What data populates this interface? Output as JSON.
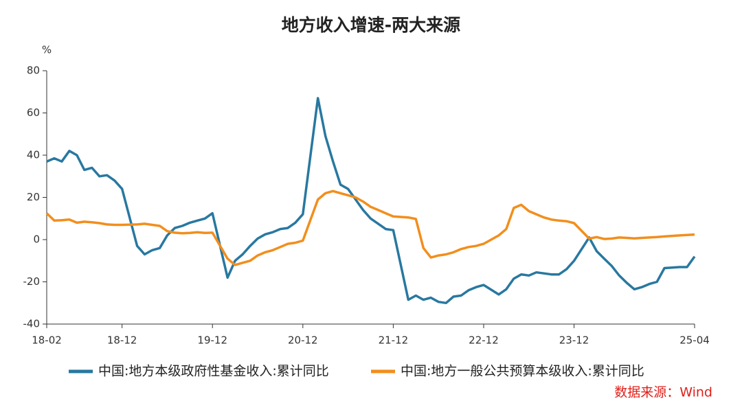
{
  "chart_data": {
    "type": "line",
    "title": "地方收入增速-两大来源",
    "y_unit": "%",
    "source": "数据来源：Wind",
    "x": [
      "18-02",
      "18-03",
      "18-04",
      "18-05",
      "18-06",
      "18-07",
      "18-08",
      "18-09",
      "18-10",
      "18-11",
      "18-12",
      "19-02",
      "19-03",
      "19-04",
      "19-05",
      "19-06",
      "19-07",
      "19-08",
      "19-09",
      "19-10",
      "19-11",
      "19-12",
      "20-02",
      "20-03",
      "20-04",
      "20-05",
      "20-06",
      "20-07",
      "20-08",
      "20-09",
      "20-10",
      "20-11",
      "20-12",
      "21-02",
      "21-03",
      "21-04",
      "21-05",
      "21-06",
      "21-07",
      "21-08",
      "21-09",
      "21-10",
      "21-11",
      "21-12",
      "22-02",
      "22-03",
      "22-04",
      "22-05",
      "22-06",
      "22-07",
      "22-08",
      "22-09",
      "22-10",
      "22-11",
      "22-12",
      "23-02",
      "23-03",
      "23-04",
      "23-05",
      "23-06",
      "23-07",
      "23-08",
      "23-09",
      "23-10",
      "23-11",
      "23-12",
      "24-02",
      "24-03",
      "24-04",
      "24-05",
      "24-06",
      "24-07",
      "24-08",
      "24-09",
      "24-10",
      "24-11",
      "24-12",
      "25-02",
      "25-03",
      "25-04"
    ],
    "xticks": [
      "18-02",
      "18-12",
      "19-12",
      "20-12",
      "21-12",
      "22-12",
      "23-12",
      "25-04"
    ],
    "ylim": [
      -40,
      80
    ],
    "yticks": [
      -40,
      -20,
      0,
      20,
      40,
      60,
      80
    ],
    "legend": "bottom",
    "series": [
      {
        "name": "中国:地方本级政府性基金收入:累计同比",
        "color": "#2878a0",
        "values": [
          37,
          38.5,
          37,
          42,
          40,
          33,
          34,
          30,
          30.5,
          28,
          24,
          -3,
          -7,
          -5,
          -4,
          2,
          5.5,
          6.5,
          8,
          9,
          10,
          12.5,
          -18,
          -10,
          -7,
          -3,
          0.5,
          2.5,
          3.5,
          5,
          5.5,
          8,
          12,
          67,
          49,
          37,
          26,
          24,
          19,
          14,
          10,
          7.5,
          5,
          4.5,
          -28.5,
          -26.5,
          -28.5,
          -27.5,
          -29.5,
          -30,
          -27,
          -26.5,
          -24,
          -22.5,
          -21.5,
          -26,
          -23.5,
          -18.5,
          -16.5,
          -17,
          -15.5,
          -16,
          -16.5,
          -16.5,
          -14,
          -10,
          1,
          -5.5,
          -9,
          -12.5,
          -17,
          -20.5,
          -23.5,
          -22.5,
          -21,
          -20,
          -13.5,
          -13,
          -13,
          -8
        ]
      },
      {
        "name": "中国:地方一般公共预算本级收入:累计同比",
        "color": "#f28e1c",
        "values": [
          12.5,
          9,
          9.2,
          9.5,
          8,
          8.5,
          8.2,
          7.8,
          7.2,
          7,
          7,
          7.2,
          7.5,
          7,
          6.5,
          4,
          3.3,
          3,
          3.2,
          3.5,
          3.2,
          3.3,
          -9,
          -12,
          -11,
          -10,
          -7.5,
          -6,
          -5,
          -3.5,
          -2,
          -1.5,
          -0.5,
          19,
          22,
          23,
          22,
          21,
          20,
          18,
          15.5,
          14,
          12.5,
          11,
          10.5,
          9.8,
          -4,
          -8.5,
          -7.5,
          -7,
          -6,
          -4.5,
          -3.5,
          -3,
          -2,
          2,
          5,
          15,
          16.5,
          13.5,
          12,
          10.5,
          9.5,
          9,
          8.7,
          7.8,
          0.5,
          1.2,
          0.3,
          0.5,
          1,
          0.8,
          0.6,
          0.8,
          1,
          1.2,
          1.5,
          2,
          2.2,
          2.4
        ]
      }
    ]
  }
}
